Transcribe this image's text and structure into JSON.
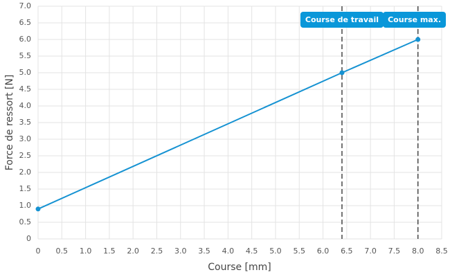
{
  "chart_data": {
    "type": "line",
    "x_label": "Course [mm]",
    "y_label": "Force de ressort [N]",
    "x": [
      0,
      6.4,
      8.0
    ],
    "values": [
      0.9,
      5.0,
      6.0
    ],
    "color": "#1592d2",
    "xlim": [
      0,
      8.5
    ],
    "xticks": [
      0,
      0.5,
      {
        "value": 1,
        "label": "1.0"
      },
      1.5,
      {
        "value": 2,
        "label": "2.0"
      },
      2.5,
      {
        "value": 3,
        "label": "3.0"
      },
      3.5,
      {
        "value": 4,
        "label": "4.0"
      },
      4.5,
      {
        "value": 5,
        "label": "5.0"
      },
      5.5,
      {
        "value": 6,
        "label": "6.0"
      },
      6.5,
      {
        "value": 7,
        "label": "7.0"
      },
      7.5,
      {
        "value": 8,
        "label": "8.0"
      },
      8.5
    ],
    "ylim": [
      0,
      7
    ],
    "yticks": [
      0,
      0.5,
      {
        "value": 1,
        "label": "1.0"
      },
      1.5,
      {
        "value": 2,
        "label": "2.0"
      },
      2.5,
      {
        "value": 3,
        "label": "3.0"
      },
      3.5,
      {
        "value": 4,
        "label": "4.0"
      },
      4.5,
      {
        "value": 5,
        "label": "5.0"
      },
      5.5,
      {
        "value": 6,
        "label": "6.0"
      },
      6.5,
      {
        "value": 7,
        "label": "7.0"
      }
    ],
    "grid": true,
    "annotations": [
      {
        "x": 6.4,
        "label": "Course de travail"
      },
      {
        "x": 8.0,
        "label": "Course max."
      }
    ],
    "annotation_color": "#0a97d9"
  }
}
